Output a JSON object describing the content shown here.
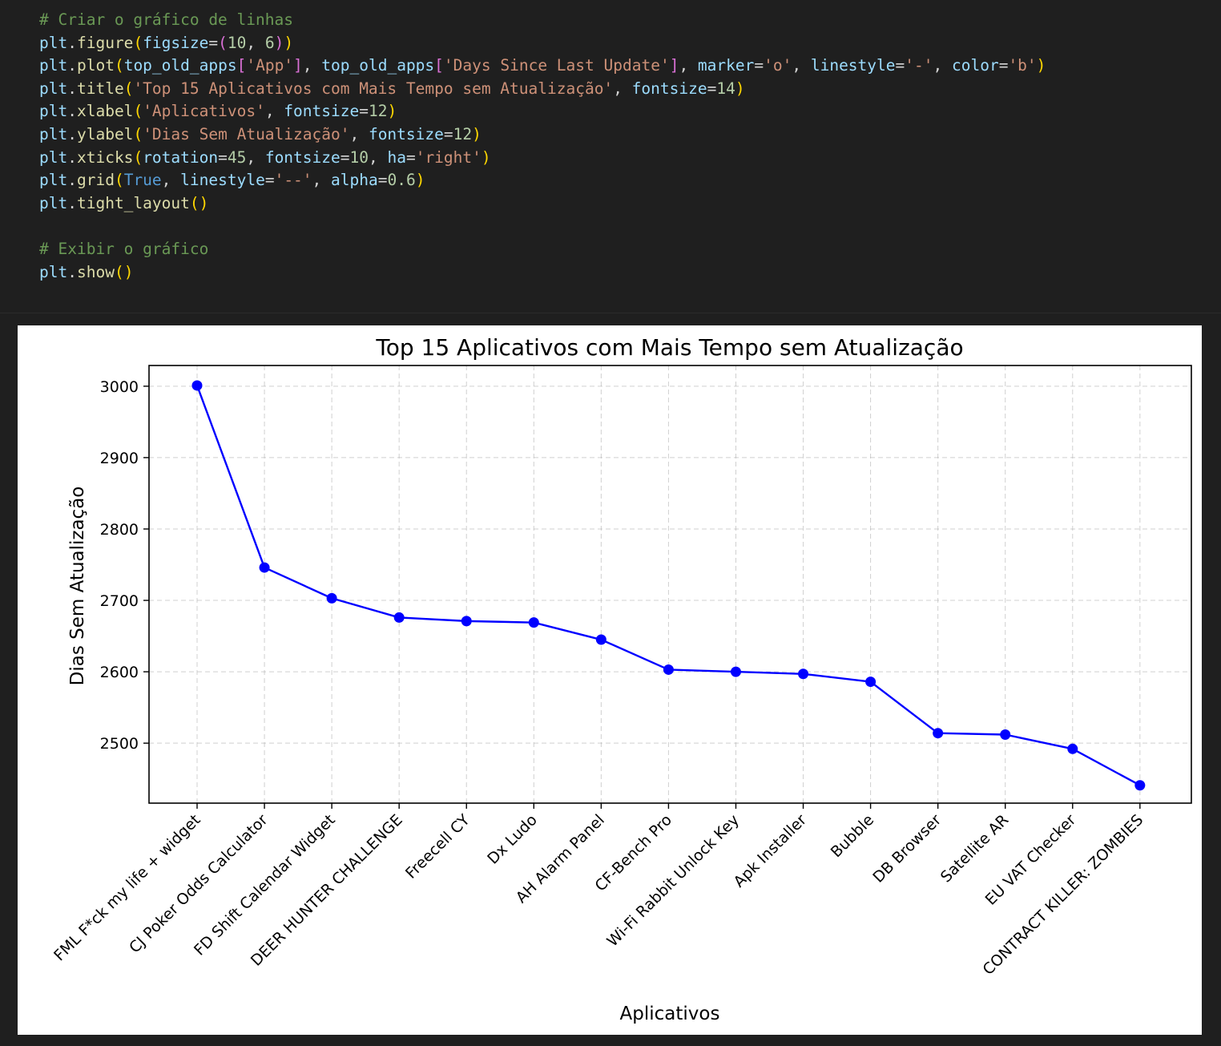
{
  "code_cell": {
    "lines": [
      [
        {
          "t": "# Criar o gráfico de linhas",
          "c": "comment"
        }
      ],
      [
        {
          "t": "plt",
          "c": "var"
        },
        {
          "t": ".",
          "c": "punct"
        },
        {
          "t": "figure",
          "c": "fn"
        },
        {
          "t": "(",
          "c": "br1"
        },
        {
          "t": "figsize",
          "c": "var"
        },
        {
          "t": "=",
          "c": "punct"
        },
        {
          "t": "(",
          "c": "br2"
        },
        {
          "t": "10",
          "c": "num"
        },
        {
          "t": ", ",
          "c": "punct"
        },
        {
          "t": "6",
          "c": "num"
        },
        {
          "t": ")",
          "c": "br2"
        },
        {
          "t": ")",
          "c": "br1"
        }
      ],
      [
        {
          "t": "plt",
          "c": "var"
        },
        {
          "t": ".",
          "c": "punct"
        },
        {
          "t": "plot",
          "c": "fn"
        },
        {
          "t": "(",
          "c": "br1"
        },
        {
          "t": "top_old_apps",
          "c": "var"
        },
        {
          "t": "[",
          "c": "br2"
        },
        {
          "t": "'App'",
          "c": "str"
        },
        {
          "t": "]",
          "c": "br2"
        },
        {
          "t": ", ",
          "c": "punct"
        },
        {
          "t": "top_old_apps",
          "c": "var"
        },
        {
          "t": "[",
          "c": "br2"
        },
        {
          "t": "'Days Since Last Update'",
          "c": "str"
        },
        {
          "t": "]",
          "c": "br2"
        },
        {
          "t": ", ",
          "c": "punct"
        },
        {
          "t": "marker",
          "c": "var"
        },
        {
          "t": "=",
          "c": "punct"
        },
        {
          "t": "'o'",
          "c": "str"
        },
        {
          "t": ", ",
          "c": "punct"
        },
        {
          "t": "linestyle",
          "c": "var"
        },
        {
          "t": "=",
          "c": "punct"
        },
        {
          "t": "'-'",
          "c": "str"
        },
        {
          "t": ", ",
          "c": "punct"
        },
        {
          "t": "color",
          "c": "var"
        },
        {
          "t": "=",
          "c": "punct"
        },
        {
          "t": "'b'",
          "c": "str"
        },
        {
          "t": ")",
          "c": "br1"
        }
      ],
      [
        {
          "t": "plt",
          "c": "var"
        },
        {
          "t": ".",
          "c": "punct"
        },
        {
          "t": "title",
          "c": "fn"
        },
        {
          "t": "(",
          "c": "br1"
        },
        {
          "t": "'Top 15 Aplicativos com Mais Tempo sem Atualização'",
          "c": "str"
        },
        {
          "t": ", ",
          "c": "punct"
        },
        {
          "t": "fontsize",
          "c": "var"
        },
        {
          "t": "=",
          "c": "punct"
        },
        {
          "t": "14",
          "c": "num"
        },
        {
          "t": ")",
          "c": "br1"
        }
      ],
      [
        {
          "t": "plt",
          "c": "var"
        },
        {
          "t": ".",
          "c": "punct"
        },
        {
          "t": "xlabel",
          "c": "fn"
        },
        {
          "t": "(",
          "c": "br1"
        },
        {
          "t": "'Aplicativos'",
          "c": "str"
        },
        {
          "t": ", ",
          "c": "punct"
        },
        {
          "t": "fontsize",
          "c": "var"
        },
        {
          "t": "=",
          "c": "punct"
        },
        {
          "t": "12",
          "c": "num"
        },
        {
          "t": ")",
          "c": "br1"
        }
      ],
      [
        {
          "t": "plt",
          "c": "var"
        },
        {
          "t": ".",
          "c": "punct"
        },
        {
          "t": "ylabel",
          "c": "fn"
        },
        {
          "t": "(",
          "c": "br1"
        },
        {
          "t": "'Dias Sem Atualização'",
          "c": "str"
        },
        {
          "t": ", ",
          "c": "punct"
        },
        {
          "t": "fontsize",
          "c": "var"
        },
        {
          "t": "=",
          "c": "punct"
        },
        {
          "t": "12",
          "c": "num"
        },
        {
          "t": ")",
          "c": "br1"
        }
      ],
      [
        {
          "t": "plt",
          "c": "var"
        },
        {
          "t": ".",
          "c": "punct"
        },
        {
          "t": "xticks",
          "c": "fn"
        },
        {
          "t": "(",
          "c": "br1"
        },
        {
          "t": "rotation",
          "c": "var"
        },
        {
          "t": "=",
          "c": "punct"
        },
        {
          "t": "45",
          "c": "num"
        },
        {
          "t": ", ",
          "c": "punct"
        },
        {
          "t": "fontsize",
          "c": "var"
        },
        {
          "t": "=",
          "c": "punct"
        },
        {
          "t": "10",
          "c": "num"
        },
        {
          "t": ", ",
          "c": "punct"
        },
        {
          "t": "ha",
          "c": "var"
        },
        {
          "t": "=",
          "c": "punct"
        },
        {
          "t": "'right'",
          "c": "str"
        },
        {
          "t": ")",
          "c": "br1"
        }
      ],
      [
        {
          "t": "plt",
          "c": "var"
        },
        {
          "t": ".",
          "c": "punct"
        },
        {
          "t": "grid",
          "c": "fn"
        },
        {
          "t": "(",
          "c": "br1"
        },
        {
          "t": "True",
          "c": "kw"
        },
        {
          "t": ", ",
          "c": "punct"
        },
        {
          "t": "linestyle",
          "c": "var"
        },
        {
          "t": "=",
          "c": "punct"
        },
        {
          "t": "'--'",
          "c": "str"
        },
        {
          "t": ", ",
          "c": "punct"
        },
        {
          "t": "alpha",
          "c": "var"
        },
        {
          "t": "=",
          "c": "punct"
        },
        {
          "t": "0.6",
          "c": "num"
        },
        {
          "t": ")",
          "c": "br1"
        }
      ],
      [
        {
          "t": "plt",
          "c": "var"
        },
        {
          "t": ".",
          "c": "punct"
        },
        {
          "t": "tight_layout",
          "c": "fn"
        },
        {
          "t": "(",
          "c": "br1"
        },
        {
          "t": ")",
          "c": "br1"
        }
      ],
      [],
      [
        {
          "t": "# Exibir o gráfico",
          "c": "comment"
        }
      ],
      [
        {
          "t": "plt",
          "c": "var"
        },
        {
          "t": ".",
          "c": "punct"
        },
        {
          "t": "show",
          "c": "fn"
        },
        {
          "t": "(",
          "c": "br1"
        },
        {
          "t": ")",
          "c": "br1"
        }
      ]
    ]
  },
  "chart_data": {
    "type": "line",
    "title": "Top 15 Aplicativos com Mais Tempo sem Atualização",
    "xlabel": "Aplicativos",
    "ylabel": "Dias Sem Atualização",
    "categories": [
      "FML F*ck my life + widget",
      "CJ Poker Odds Calculator",
      "FD Shift Calendar Widget",
      "DEER HUNTER CHALLENGE",
      "Freecell CY",
      "Dx Ludo",
      "AH Alarm Panel",
      "CF-Bench Pro",
      "Wi-Fi Rabbit Unlock Key",
      "Apk Installer",
      "Bubble",
      "DB Browser",
      "Satellite AR",
      "EU VAT Checker",
      "CONTRACT KILLER: ZOMBIES"
    ],
    "series": [
      {
        "values": [
          3001,
          2746,
          2703,
          2676,
          2671,
          2669,
          2645,
          2603,
          2600,
          2597,
          2586,
          2514,
          2512,
          2492,
          2441
        ]
      }
    ],
    "ylim": [
      2416,
      3029
    ],
    "yticks": [
      2500,
      2600,
      2700,
      2800,
      2900,
      3000
    ],
    "marker": "o",
    "linestyle": "-",
    "color": "#0000ff",
    "grid": true,
    "grid_linestyle": "dashed",
    "grid_alpha": 0.6
  }
}
